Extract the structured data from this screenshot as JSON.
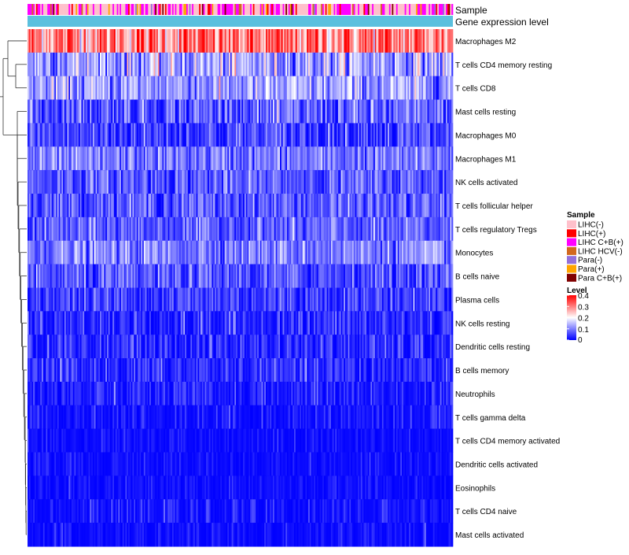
{
  "chart_data": {
    "type": "heatmap",
    "annotation_tracks": [
      "Sample",
      "Gene expression level"
    ],
    "rows": [
      {
        "label": "Macrophages M2",
        "mean": 0.3,
        "sd": 0.07
      },
      {
        "label": "T cells CD4 memory resting",
        "mean": 0.13,
        "sd": 0.06
      },
      {
        "label": "T cells CD8",
        "mean": 0.12,
        "sd": 0.05
      },
      {
        "label": "Mast cells resting",
        "mean": 0.07,
        "sd": 0.05
      },
      {
        "label": "Macrophages M0",
        "mean": 0.05,
        "sd": 0.05
      },
      {
        "label": "Macrophages M1",
        "mean": 0.09,
        "sd": 0.04
      },
      {
        "label": "NK cells activated",
        "mean": 0.07,
        "sd": 0.04
      },
      {
        "label": "T cells follicular helper",
        "mean": 0.07,
        "sd": 0.04
      },
      {
        "label": "T cells regulatory  Tregs",
        "mean": 0.07,
        "sd": 0.04
      },
      {
        "label": "Monocytes",
        "mean": 0.1,
        "sd": 0.04
      },
      {
        "label": "B cells naive",
        "mean": 0.06,
        "sd": 0.04
      },
      {
        "label": "Plasma cells",
        "mean": 0.05,
        "sd": 0.04
      },
      {
        "label": "NK cells resting",
        "mean": 0.03,
        "sd": 0.04
      },
      {
        "label": "Dendritic cells resting",
        "mean": 0.03,
        "sd": 0.035
      },
      {
        "label": "B cells memory",
        "mean": 0.03,
        "sd": 0.035
      },
      {
        "label": "Neutrophils",
        "mean": 0.02,
        "sd": 0.03
      },
      {
        "label": "T cells gamma delta",
        "mean": 0.01,
        "sd": 0.03
      },
      {
        "label": "T cells CD4 memory activated",
        "mean": 0.005,
        "sd": 0.02
      },
      {
        "label": "Dendritic cells activated",
        "mean": 0.005,
        "sd": 0.02
      },
      {
        "label": "Eosinophils",
        "mean": 0.005,
        "sd": 0.02
      },
      {
        "label": "T cells CD4 naive",
        "mean": 0.01,
        "sd": 0.025
      },
      {
        "label": "Mast cells activated",
        "mean": 0.005,
        "sd": 0.02
      }
    ],
    "n_samples": 300,
    "color_scale": {
      "domain": [
        0,
        0.4
      ],
      "colors": [
        "#0000ff",
        "#ffffff",
        "#ff0000"
      ],
      "midpoint": 0.2
    },
    "legend": {
      "sample_title": "Sample",
      "sample_categories": [
        {
          "label": "LIHC(-)",
          "color": "#ffc0cb"
        },
        {
          "label": "LIHC(+)",
          "color": "#ff0000"
        },
        {
          "label": "LIHC C+B(+)",
          "color": "#ff00ff"
        },
        {
          "label": "LIHC HCV(-)",
          "color": "#d2691e"
        },
        {
          "label": "Para(-)",
          "color": "#9370db"
        },
        {
          "label": "Para(+)",
          "color": "#ffa500"
        },
        {
          "label": "Para C+B(+)",
          "color": "#800000"
        }
      ],
      "level_title": "Level",
      "level_ticks": [
        "0.4",
        "0.3",
        "0.2",
        "0.1",
        "0"
      ],
      "level_values": [
        0.4,
        0.3,
        0.2,
        0.1,
        0
      ]
    },
    "expression_track_color": "#5bc0de",
    "sample_mix": [
      0.48,
      0.06,
      0.3,
      0.03,
      0.05,
      0.05,
      0.03
    ]
  }
}
